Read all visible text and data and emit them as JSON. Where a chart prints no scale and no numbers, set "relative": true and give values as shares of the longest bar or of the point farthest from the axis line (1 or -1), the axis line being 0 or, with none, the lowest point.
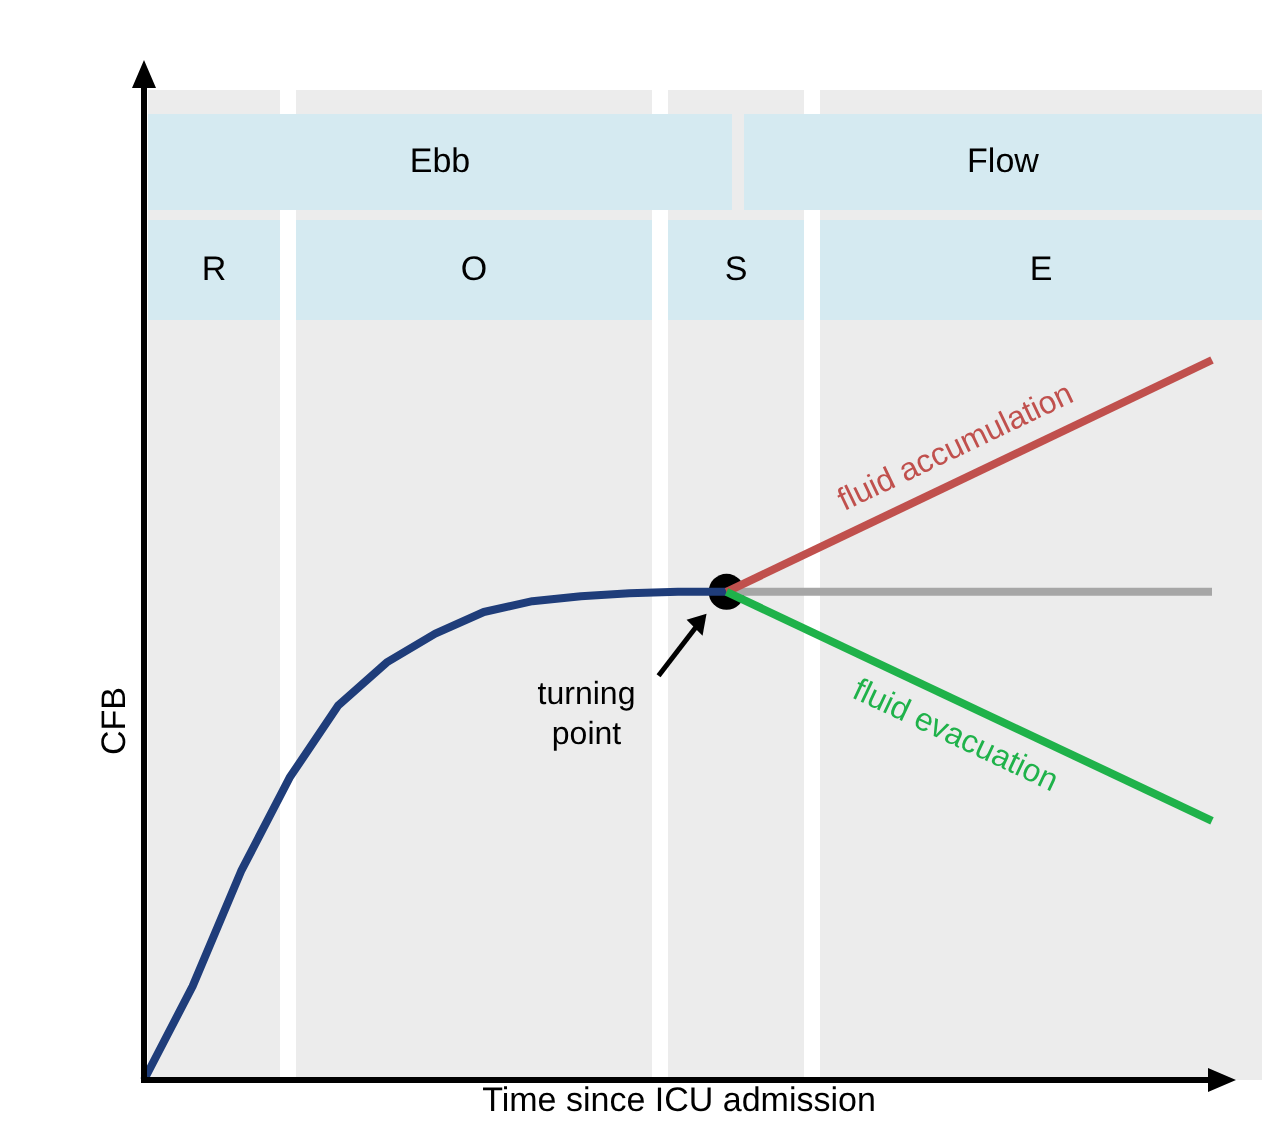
{
  "chart_data": {
    "type": "line",
    "relative": true,
    "xlabel": "Time since ICU admission",
    "ylabel": "CFB",
    "categories": [
      null,
      null,
      null,
      null,
      null,
      null,
      null,
      null,
      null,
      null,
      null,
      null,
      null,
      null,
      null,
      null,
      null,
      null,
      null,
      null,
      null,
      null,
      null
    ],
    "annotations": [
      "Ebb",
      "Flow",
      "R",
      "O",
      "S",
      "E",
      {
        "text": "turning point",
        "y": 0.678
      }
    ],
    "series": [
      {
        "color": "#1f3d7a",
        "values": [
          0,
          0.13,
          0.29,
          0.42,
          0.52,
          0.58,
          0.62,
          0.65,
          0.665,
          0.672,
          0.676,
          0.678,
          0.678,
          null,
          null,
          null,
          null,
          null,
          null,
          null,
          null,
          null,
          null
        ]
      },
      {
        "color": "#a6a6a6",
        "values": [
          null,
          null,
          null,
          null,
          null,
          null,
          null,
          null,
          null,
          null,
          null,
          null,
          0.678,
          null,
          null,
          null,
          null,
          null,
          null,
          null,
          null,
          null,
          0.678
        ]
      },
      {
        "name": "fluid accumulation",
        "color": "#c0504d",
        "values": [
          null,
          null,
          null,
          null,
          null,
          null,
          null,
          null,
          null,
          null,
          null,
          null,
          0.678,
          null,
          null,
          null,
          null,
          null,
          null,
          null,
          null,
          null,
          1
        ]
      },
      {
        "name": "fluid evacuation",
        "color": "#1fb24a",
        "values": [
          null,
          null,
          null,
          null,
          null,
          null,
          null,
          null,
          null,
          null,
          null,
          null,
          0.678,
          null,
          null,
          null,
          null,
          null,
          null,
          null,
          null,
          null,
          0.36
        ]
      }
    ]
  }
}
